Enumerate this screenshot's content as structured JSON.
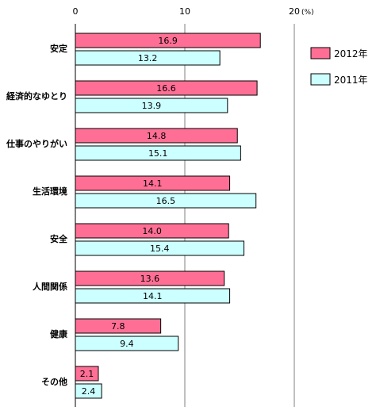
{
  "chart_data": {
    "type": "bar",
    "orientation": "horizontal",
    "categories": [
      "安定",
      "経済的なゆとり",
      "仕事のやりがい",
      "生活環境",
      "安全",
      "人間関係",
      "健康",
      "その他"
    ],
    "series": [
      {
        "name": "2012年",
        "values": [
          16.9,
          16.6,
          14.8,
          14.1,
          14.0,
          13.6,
          7.8,
          2.1
        ],
        "value_labels": [
          "16.9",
          "16.6",
          "14.8",
          "14.1",
          "14.0",
          "13.6",
          "7.8",
          "2.1"
        ],
        "color": "#ff6f95"
      },
      {
        "name": "2011年",
        "values": [
          13.2,
          13.9,
          15.1,
          16.5,
          15.4,
          14.1,
          9.4,
          2.4
        ],
        "value_labels": [
          "13.2",
          "13.9",
          "15.1",
          "16.5",
          "15.4",
          "14.1",
          "9.4",
          "2.4"
        ],
        "color": "#ccffff"
      }
    ],
    "xlim": [
      0,
      20
    ],
    "xticks": [
      0,
      10,
      20
    ],
    "xtick_labels": [
      "0",
      "10",
      "20"
    ],
    "x_unit": "(%)",
    "grid": true,
    "legend_position": "right"
  }
}
